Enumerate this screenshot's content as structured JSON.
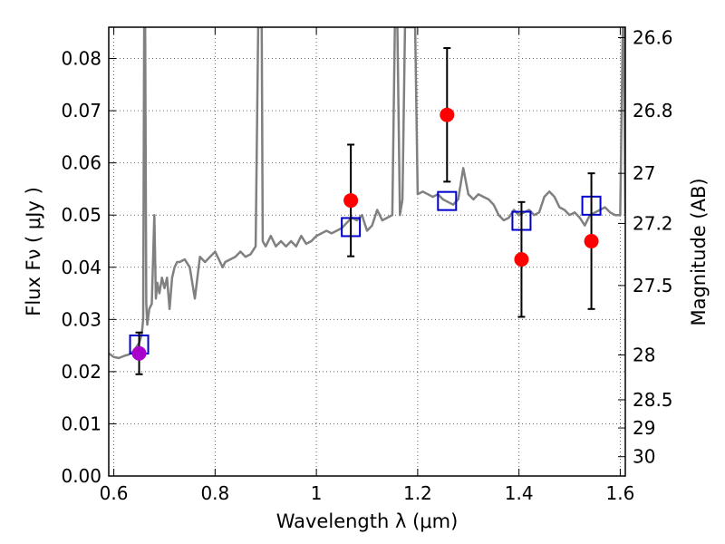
{
  "chart_data": {
    "type": "scatter",
    "xlabel": "Wavelength  λ (μm)",
    "ylabel": "Flux  Fν ( μJy )",
    "ylabel_right": "Magnitude (AB)",
    "xlim": [
      0.59,
      1.61
    ],
    "ylim": [
      0.0,
      0.086
    ],
    "grid": true,
    "x_ticks": [
      {
        "value": 0.6,
        "label": "0.6"
      },
      {
        "value": 0.8,
        "label": "0.8"
      },
      {
        "value": 1.0,
        "label": "1"
      },
      {
        "value": 1.2,
        "label": "1.2"
      },
      {
        "value": 1.4,
        "label": "1.4"
      },
      {
        "value": 1.6,
        "label": "1.6"
      }
    ],
    "y_ticks": [
      {
        "value": 0.0,
        "label": "0.00"
      },
      {
        "value": 0.01,
        "label": "0.01"
      },
      {
        "value": 0.02,
        "label": "0.02"
      },
      {
        "value": 0.03,
        "label": "0.03"
      },
      {
        "value": 0.04,
        "label": "0.04"
      },
      {
        "value": 0.05,
        "label": "0.05"
      },
      {
        "value": 0.06,
        "label": "0.06"
      },
      {
        "value": 0.07,
        "label": "0.07"
      },
      {
        "value": 0.08,
        "label": "0.08"
      }
    ],
    "right_ticks": [
      {
        "flux": 0.084,
        "label": "26.6"
      },
      {
        "flux": 0.07,
        "label": "26.8"
      },
      {
        "flux": 0.058,
        "label": "27"
      },
      {
        "flux": 0.0484,
        "label": "27.2"
      },
      {
        "flux": 0.0365,
        "label": "27.5"
      },
      {
        "flux": 0.0232,
        "label": "28"
      },
      {
        "flux": 0.0146,
        "label": "28.5"
      },
      {
        "flux": 0.0092,
        "label": "29"
      },
      {
        "flux": 0.0037,
        "label": "30"
      }
    ],
    "colors": {
      "model": "#808080",
      "observed": "#ff0000",
      "observed_first": "#aa00cc",
      "synthetic": "#0000cc",
      "errorbar": "#000000"
    },
    "model_spectrum": {
      "x": [
        0.59,
        0.6,
        0.61,
        0.62,
        0.63,
        0.64,
        0.65,
        0.655,
        0.658,
        0.66,
        0.661,
        0.662,
        0.664,
        0.666,
        0.67,
        0.675,
        0.68,
        0.683,
        0.686,
        0.69,
        0.695,
        0.7,
        0.705,
        0.71,
        0.715,
        0.72,
        0.725,
        0.73,
        0.74,
        0.75,
        0.76,
        0.77,
        0.78,
        0.79,
        0.8,
        0.81,
        0.815,
        0.82,
        0.83,
        0.84,
        0.85,
        0.86,
        0.87,
        0.88,
        0.885,
        0.887,
        0.892,
        0.894,
        0.9,
        0.91,
        0.92,
        0.93,
        0.94,
        0.95,
        0.96,
        0.97,
        0.98,
        0.99,
        1.0,
        1.01,
        1.02,
        1.03,
        1.04,
        1.05,
        1.06,
        1.07,
        1.08,
        1.09,
        1.1,
        1.11,
        1.12,
        1.13,
        1.14,
        1.15,
        1.155,
        1.16,
        1.165,
        1.17,
        1.175,
        1.18,
        1.185,
        1.19,
        1.195,
        1.2,
        1.21,
        1.22,
        1.23,
        1.24,
        1.25,
        1.26,
        1.27,
        1.28,
        1.29,
        1.3,
        1.31,
        1.32,
        1.33,
        1.34,
        1.35,
        1.36,
        1.37,
        1.38,
        1.39,
        1.4,
        1.41,
        1.42,
        1.43,
        1.44,
        1.45,
        1.46,
        1.47,
        1.48,
        1.49,
        1.5,
        1.51,
        1.52,
        1.53,
        1.54,
        1.55,
        1.56,
        1.57,
        1.58,
        1.59,
        1.6,
        1.605,
        1.607,
        1.61
      ],
      "y": [
        0.0235,
        0.0228,
        0.0226,
        0.023,
        0.0233,
        0.024,
        0.0255,
        0.027,
        0.03,
        0.086,
        0.086,
        0.086,
        0.033,
        0.029,
        0.032,
        0.033,
        0.05,
        0.034,
        0.037,
        0.035,
        0.038,
        0.036,
        0.038,
        0.032,
        0.038,
        0.04,
        0.041,
        0.041,
        0.0415,
        0.04,
        0.034,
        0.042,
        0.041,
        0.042,
        0.043,
        0.041,
        0.04,
        0.041,
        0.0415,
        0.042,
        0.043,
        0.042,
        0.0425,
        0.044,
        0.086,
        0.086,
        0.086,
        0.045,
        0.044,
        0.046,
        0.044,
        0.045,
        0.044,
        0.045,
        0.044,
        0.046,
        0.0445,
        0.045,
        0.046,
        0.0465,
        0.047,
        0.0465,
        0.047,
        0.0475,
        0.0485,
        0.0495,
        0.049,
        0.05,
        0.047,
        0.048,
        0.051,
        0.049,
        0.0495,
        0.05,
        0.086,
        0.086,
        0.05,
        0.053,
        0.086,
        0.086,
        0.086,
        0.086,
        0.086,
        0.054,
        0.0545,
        0.054,
        0.0535,
        0.054,
        0.053,
        0.0525,
        0.052,
        0.053,
        0.059,
        0.054,
        0.053,
        0.054,
        0.0535,
        0.053,
        0.052,
        0.05,
        0.049,
        0.0495,
        0.051,
        0.05,
        0.0505,
        0.051,
        0.05,
        0.0505,
        0.0535,
        0.0545,
        0.0535,
        0.0515,
        0.051,
        0.05,
        0.0505,
        0.0495,
        0.048,
        0.05,
        0.0505,
        0.051,
        0.0515,
        0.0505,
        0.05,
        0.05,
        0.086,
        0.086,
        0.05
      ]
    },
    "observed": [
      {
        "x": 0.65,
        "y": 0.0235,
        "yerr": 0.004
      },
      {
        "x": 1.068,
        "y": 0.0528,
        "yerr": 0.0107
      },
      {
        "x": 1.258,
        "y": 0.0692,
        "yerr": 0.0128
      },
      {
        "x": 1.405,
        "y": 0.0415,
        "yerr": 0.011
      },
      {
        "x": 1.543,
        "y": 0.045,
        "yerr": 0.013
      }
    ],
    "synthetic": [
      {
        "x": 0.65,
        "y": 0.0252
      },
      {
        "x": 1.068,
        "y": 0.0477
      },
      {
        "x": 1.258,
        "y": 0.0527
      },
      {
        "x": 1.405,
        "y": 0.0489
      },
      {
        "x": 1.543,
        "y": 0.0518
      }
    ]
  }
}
